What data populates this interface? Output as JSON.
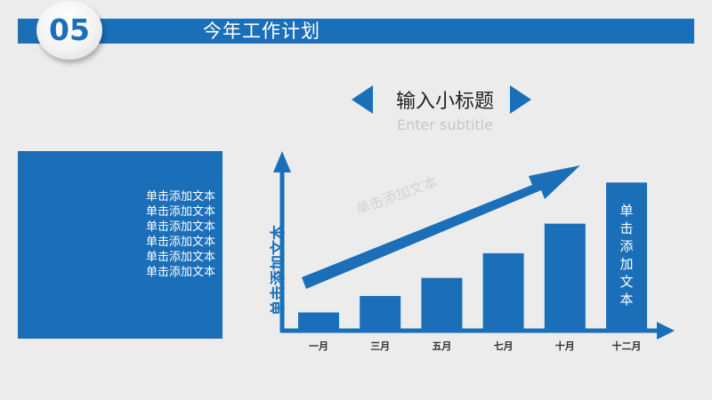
{
  "header": {
    "number": "05",
    "title": "今年工作计划"
  },
  "subtitle": {
    "main": "输入小标题",
    "english": "Enter subtitle"
  },
  "left_panel": {
    "lines": [
      "单击添加文本",
      "单击添加文本",
      "单击添加文本",
      "单击添加文本",
      "单击添加文本",
      "单击添加文本"
    ]
  },
  "colors": {
    "accent": "#1a6fb8",
    "background": "#ececec"
  },
  "chart_data": {
    "type": "bar",
    "categories": [
      "一月",
      "三月",
      "五月",
      "七月",
      "十月",
      "十二月"
    ],
    "values": [
      1,
      2,
      3.1,
      4.6,
      6.4,
      8.9
    ],
    "ylim": [
      0,
      10
    ],
    "ylabel": "单击添加文本",
    "last_bar_label": "单击添加文本",
    "trend_arrow_label": "单击添加文本",
    "grid": false
  }
}
